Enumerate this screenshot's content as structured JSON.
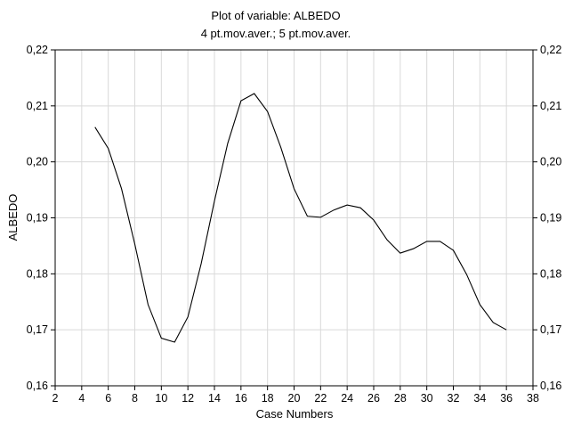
{
  "chart_data": {
    "type": "line",
    "title": "Plot of variable: ALBEDO",
    "subtitle": "4 pt.mov.aver.; 5 pt.mov.aver.",
    "xlabel": "Case Numbers",
    "ylabel": "ALBEDO",
    "xlim": [
      2,
      38
    ],
    "ylim": [
      0.16,
      0.22
    ],
    "x_ticks": [
      "2",
      "4",
      "6",
      "8",
      "10",
      "12",
      "14",
      "16",
      "18",
      "20",
      "22",
      "24",
      "26",
      "28",
      "30",
      "32",
      "34",
      "36",
      "38"
    ],
    "y_ticks": [
      "0,16",
      "0,17",
      "0,18",
      "0,19",
      "0,20",
      "0,21",
      "0,22"
    ],
    "grid": true,
    "series": [
      {
        "x": [
          5,
          6,
          7,
          8,
          9,
          10,
          11,
          12,
          13,
          14,
          15,
          16,
          17,
          18,
          19,
          20,
          21,
          22,
          23,
          24,
          25,
          26,
          27,
          28,
          29,
          30,
          31,
          32,
          33,
          34,
          35,
          36
        ],
        "y": [
          0.2062,
          0.2024,
          0.1952,
          0.1853,
          0.1745,
          0.1685,
          0.1678,
          0.1723,
          0.1818,
          0.193,
          0.2033,
          0.2109,
          0.2122,
          0.209,
          0.2026,
          0.1952,
          0.1903,
          0.1901,
          0.1914,
          0.1923,
          0.1918,
          0.1896,
          0.1861,
          0.1837,
          0.1845,
          0.1858,
          0.1858,
          0.1842,
          0.1799,
          0.1745,
          0.1713,
          0.17
        ]
      }
    ]
  }
}
